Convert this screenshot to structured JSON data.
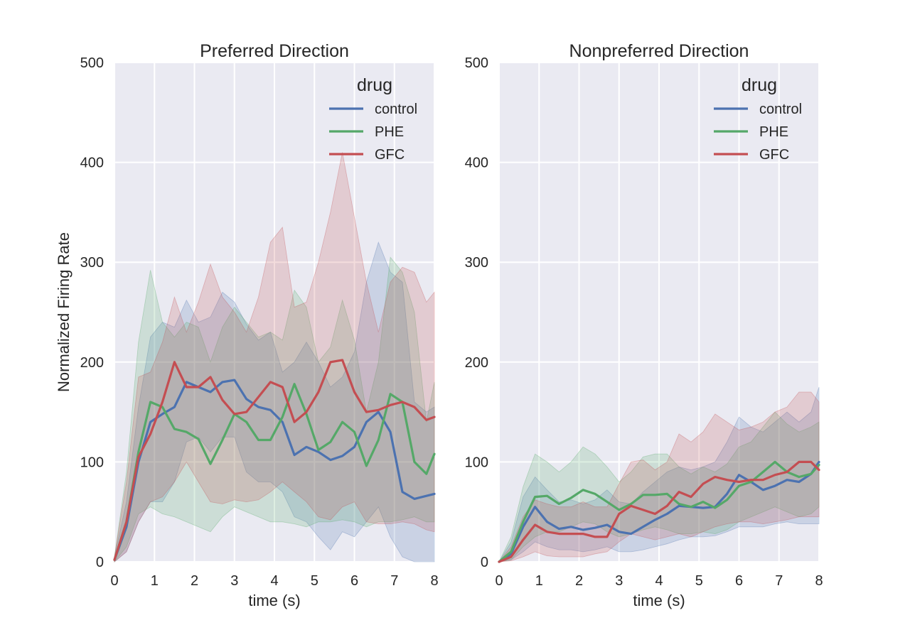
{
  "chart_data": [
    {
      "type": "line",
      "title": "Preferred Direction",
      "xlabel": "time (s)",
      "ylabel": "Normalized Firing Rate",
      "xlim": [
        0,
        8
      ],
      "ylim": [
        0,
        500
      ],
      "xticks": [
        0,
        1,
        2,
        3,
        4,
        5,
        6,
        7,
        8
      ],
      "yticks": [
        0,
        100,
        200,
        300,
        400,
        500
      ],
      "grid": true,
      "legend": {
        "title": "drug",
        "placement": "top-right"
      },
      "series": [
        {
          "name": "control",
          "color": "#4c72b0",
          "x": [
            0,
            0.3,
            0.6,
            0.9,
            1.2,
            1.5,
            1.8,
            2.1,
            2.4,
            2.7,
            3.0,
            3.3,
            3.6,
            3.9,
            4.2,
            4.5,
            4.8,
            5.1,
            5.4,
            5.7,
            6.0,
            6.3,
            6.6,
            6.9,
            7.2,
            7.5,
            7.8,
            8.0
          ],
          "y": [
            2,
            35,
            100,
            140,
            148,
            155,
            180,
            175,
            170,
            180,
            182,
            163,
            155,
            152,
            140,
            107,
            115,
            110,
            102,
            106,
            115,
            140,
            150,
            130,
            70,
            63,
            66,
            68
          ],
          "lower": [
            0,
            10,
            40,
            60,
            60,
            80,
            120,
            125,
            110,
            125,
            125,
            90,
            80,
            80,
            70,
            45,
            40,
            25,
            12,
            30,
            25,
            40,
            55,
            25,
            5,
            0,
            0,
            0
          ],
          "upper": [
            5,
            60,
            155,
            225,
            240,
            235,
            262,
            240,
            245,
            270,
            260,
            238,
            222,
            230,
            190,
            200,
            220,
            200,
            175,
            185,
            210,
            280,
            320,
            290,
            280,
            160,
            150,
            155
          ]
        },
        {
          "name": "PHE",
          "color": "#55a868",
          "x": [
            0,
            0.3,
            0.6,
            0.9,
            1.2,
            1.5,
            1.8,
            2.1,
            2.4,
            2.7,
            3.0,
            3.3,
            3.6,
            3.9,
            4.2,
            4.5,
            4.8,
            5.1,
            5.4,
            5.7,
            6.0,
            6.3,
            6.6,
            6.9,
            7.2,
            7.5,
            7.8,
            8.0
          ],
          "y": [
            2,
            40,
            110,
            160,
            155,
            133,
            130,
            123,
            98,
            122,
            148,
            140,
            122,
            122,
            145,
            178,
            148,
            112,
            120,
            140,
            130,
            96,
            122,
            168,
            160,
            100,
            88,
            108
          ],
          "lower": [
            0,
            15,
            48,
            55,
            48,
            45,
            40,
            35,
            30,
            45,
            55,
            50,
            45,
            40,
            40,
            38,
            35,
            40,
            40,
            42,
            40,
            35,
            40,
            40,
            42,
            45,
            40,
            40
          ],
          "upper": [
            5,
            90,
            220,
            292,
            240,
            225,
            240,
            235,
            200,
            235,
            255,
            240,
            225,
            230,
            222,
            272,
            255,
            200,
            215,
            262,
            222,
            150,
            200,
            305,
            290,
            250,
            140,
            180
          ]
        },
        {
          "name": "GFC",
          "color": "#c44e52",
          "x": [
            0,
            0.3,
            0.6,
            0.9,
            1.2,
            1.5,
            1.8,
            2.1,
            2.4,
            2.7,
            3.0,
            3.3,
            3.6,
            3.9,
            4.2,
            4.5,
            4.8,
            5.1,
            5.4,
            5.7,
            6.0,
            6.3,
            6.6,
            6.9,
            7.2,
            7.5,
            7.8,
            8.0
          ],
          "y": [
            2,
            40,
            105,
            128,
            160,
            200,
            175,
            175,
            185,
            162,
            148,
            150,
            165,
            180,
            175,
            140,
            150,
            170,
            200,
            202,
            170,
            150,
            152,
            157,
            160,
            155,
            142,
            145
          ],
          "lower": [
            0,
            10,
            40,
            60,
            65,
            80,
            100,
            80,
            60,
            58,
            62,
            60,
            62,
            70,
            80,
            70,
            60,
            45,
            42,
            55,
            60,
            40,
            38,
            38,
            40,
            38,
            32,
            30
          ],
          "upper": [
            5,
            80,
            185,
            190,
            220,
            265,
            230,
            260,
            298,
            265,
            250,
            230,
            265,
            320,
            335,
            255,
            260,
            300,
            350,
            410,
            345,
            280,
            230,
            280,
            295,
            290,
            260,
            270
          ]
        }
      ]
    },
    {
      "type": "line",
      "title": "Nonpreferred Direction",
      "xlabel": "time (s)",
      "ylabel": "",
      "xlim": [
        0,
        8
      ],
      "ylim": [
        0,
        500
      ],
      "xticks": [
        0,
        1,
        2,
        3,
        4,
        5,
        6,
        7,
        8
      ],
      "yticks": [
        0,
        100,
        200,
        300,
        400,
        500
      ],
      "grid": true,
      "legend": {
        "title": "drug",
        "placement": "top-right"
      },
      "series": [
        {
          "name": "control",
          "color": "#4c72b0",
          "x": [
            0,
            0.3,
            0.6,
            0.9,
            1.2,
            1.5,
            1.8,
            2.1,
            2.4,
            2.7,
            3.0,
            3.3,
            3.6,
            3.9,
            4.2,
            4.5,
            4.8,
            5.1,
            5.4,
            5.7,
            6.0,
            6.3,
            6.6,
            6.9,
            7.2,
            7.5,
            7.8,
            8.0
          ],
          "y": [
            0,
            8,
            35,
            55,
            40,
            33,
            35,
            32,
            34,
            37,
            30,
            28,
            35,
            42,
            48,
            56,
            55,
            54,
            55,
            68,
            87,
            80,
            72,
            76,
            82,
            80,
            88,
            100
          ],
          "lower": [
            0,
            2,
            10,
            20,
            15,
            12,
            12,
            10,
            12,
            15,
            10,
            10,
            12,
            15,
            18,
            22,
            25,
            25,
            26,
            30,
            35,
            35,
            35,
            38,
            40,
            38,
            38,
            38
          ],
          "upper": [
            0,
            20,
            65,
            85,
            72,
            60,
            62,
            58,
            62,
            72,
            60,
            58,
            70,
            80,
            90,
            95,
            92,
            95,
            100,
            120,
            145,
            135,
            130,
            140,
            150,
            140,
            150,
            175
          ]
        },
        {
          "name": "PHE",
          "color": "#55a868",
          "x": [
            0,
            0.3,
            0.6,
            0.9,
            1.2,
            1.5,
            1.8,
            2.1,
            2.4,
            2.7,
            3.0,
            3.3,
            3.6,
            3.9,
            4.2,
            4.5,
            4.8,
            5.1,
            5.4,
            5.7,
            6.0,
            6.3,
            6.6,
            6.9,
            7.2,
            7.5,
            7.8,
            8.0
          ],
          "y": [
            0,
            10,
            40,
            65,
            66,
            58,
            64,
            72,
            68,
            60,
            52,
            58,
            67,
            67,
            68,
            58,
            55,
            60,
            54,
            62,
            76,
            80,
            90,
            100,
            90,
            85,
            88,
            97
          ],
          "lower": [
            0,
            2,
            15,
            25,
            30,
            30,
            35,
            40,
            38,
            30,
            25,
            28,
            32,
            35,
            32,
            28,
            28,
            30,
            28,
            32,
            40,
            45,
            50,
            55,
            50,
            45,
            48,
            55
          ],
          "upper": [
            0,
            25,
            75,
            108,
            100,
            90,
            100,
            115,
            108,
            95,
            80,
            90,
            105,
            108,
            108,
            95,
            88,
            95,
            90,
            98,
            115,
            120,
            135,
            150,
            138,
            130,
            135,
            140
          ]
        },
        {
          "name": "GFC",
          "color": "#c44e52",
          "x": [
            0,
            0.3,
            0.6,
            0.9,
            1.2,
            1.5,
            1.8,
            2.1,
            2.4,
            2.7,
            3.0,
            3.3,
            3.6,
            3.9,
            4.2,
            4.5,
            4.8,
            5.1,
            5.4,
            5.7,
            6.0,
            6.3,
            6.6,
            6.9,
            7.2,
            7.5,
            7.8,
            8.0
          ],
          "y": [
            0,
            5,
            22,
            37,
            30,
            28,
            28,
            28,
            25,
            25,
            48,
            56,
            52,
            48,
            56,
            70,
            65,
            78,
            85,
            82,
            80,
            82,
            82,
            87,
            90,
            100,
            100,
            92
          ],
          "lower": [
            0,
            1,
            5,
            10,
            6,
            5,
            5,
            5,
            8,
            10,
            20,
            28,
            25,
            22,
            25,
            28,
            25,
            30,
            35,
            38,
            40,
            40,
            38,
            40,
            42,
            45,
            45,
            45
          ],
          "upper": [
            0,
            15,
            45,
            62,
            58,
            55,
            55,
            60,
            55,
            55,
            78,
            100,
            102,
            92,
            100,
            128,
            120,
            130,
            148,
            140,
            132,
            135,
            140,
            150,
            155,
            170,
            170,
            160
          ]
        }
      ]
    }
  ]
}
